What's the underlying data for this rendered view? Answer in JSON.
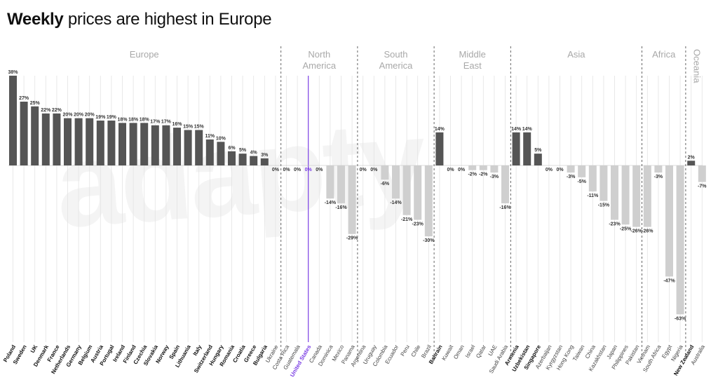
{
  "title": {
    "bold": "Weekly",
    "rest": " prices are highest in Europe"
  },
  "watermark": "adapty",
  "colors": {
    "positive": "#555555",
    "negative": "#cfcfcf",
    "highlight": "#7b3fe4",
    "gridline": "#e3e3e3",
    "divider": "#555555"
  },
  "chart_data": {
    "type": "bar",
    "title": "Weekly prices are highest in Europe",
    "ylabel": "",
    "xlabel": "",
    "ylim": [
      -63,
      38
    ],
    "highlight": "United States",
    "regions": [
      {
        "name": "Europe",
        "lines": [
          "Europe"
        ],
        "start": 0,
        "end": 24
      },
      {
        "name": "North America",
        "lines": [
          "North",
          "America"
        ],
        "start": 25,
        "end": 31
      },
      {
        "name": "South America",
        "lines": [
          "South",
          "America"
        ],
        "start": 32,
        "end": 38
      },
      {
        "name": "Middle East",
        "lines": [
          "Middle",
          "East"
        ],
        "start": 39,
        "end": 45
      },
      {
        "name": "Asia",
        "lines": [
          "Asia"
        ],
        "start": 46,
        "end": 57
      },
      {
        "name": "Africa",
        "lines": [
          "Africa"
        ],
        "start": 58,
        "end": 61
      },
      {
        "name": "Oceania",
        "lines": [
          "Oceania"
        ],
        "start": 62,
        "end": 63
      }
    ],
    "categories": [
      "Poland",
      "Sweden",
      "UK",
      "Denmark",
      "France",
      "Netherlands",
      "Germany",
      "Belgium",
      "Austria",
      "Portugal",
      "Ireland",
      "Finland",
      "Czechia",
      "Slovakia",
      "Norway",
      "Spain",
      "Lithuania",
      "Italy",
      "Switzerland",
      "Hungary",
      "Romania",
      "Croatia",
      "Greece",
      "Bulgaria",
      "Ukraine",
      "Costa Rica",
      "Guatemala",
      "United States",
      "Canada",
      "Dominica",
      "Mexico",
      "Panama",
      "Argentina",
      "Uruguay",
      "Colombia",
      "Ecuador",
      "Peru",
      "Chile",
      "Brazil",
      "Bahrain",
      "Kuwait",
      "Oman",
      "Israel",
      "Qatar",
      "UAE",
      "Saudi Arabia",
      "Armenia",
      "Uzbekistan",
      "Singapore",
      "Azerbaijan",
      "Kyrgyzstan",
      "Hong Kong",
      "Taiwan",
      "China",
      "Kazakhstan",
      "Japan",
      "Philippines",
      "Pakistan",
      "Vietnam",
      "South Africa",
      "Egypt",
      "Nigeria",
      "New Zealand",
      "Australia"
    ],
    "values": [
      38,
      27,
      25,
      22,
      22,
      20,
      20,
      20,
      19,
      19,
      18,
      18,
      18,
      17,
      17,
      16,
      15,
      15,
      11,
      10,
      6,
      5,
      4,
      3,
      0,
      0,
      0,
      0,
      0,
      -14,
      -16,
      -29,
      0,
      0,
      -6,
      -14,
      -21,
      -23,
      -30,
      14,
      0,
      0,
      -2,
      -2,
      -3,
      -16,
      14,
      14,
      5,
      0,
      0,
      -3,
      -5,
      -11,
      -15,
      -23,
      -25,
      -26,
      -26,
      -3,
      -47,
      -63,
      2,
      -7
    ],
    "labels": [
      "38%",
      "27%",
      "25%",
      "22%",
      "22%",
      "20%",
      "20%",
      "20%",
      "19%",
      "19%",
      "18%",
      "18%",
      "18%",
      "17%",
      "17%",
      "16%",
      "15%",
      "15%",
      "11%",
      "10%",
      "6%",
      "5%",
      "4%",
      "3%",
      "0%",
      "0%",
      "0%",
      "0%",
      "0%",
      "-14%",
      "-16%",
      "-29%",
      "0%",
      "0%",
      "-6%",
      "-14%",
      "-21%",
      "-23%",
      "-30%",
      "14%",
      "0%",
      "0%",
      "-2%",
      "-2%",
      "-3%",
      "-16%",
      "14%",
      "14%",
      "5%",
      "0%",
      "0%",
      "-3%",
      "-5%",
      "-11%",
      "-15%",
      "-23%",
      "-25%",
      "-26%",
      "-26%",
      "-3%",
      "-47%",
      "-63%",
      "2%",
      "-7%"
    ],
    "bold_categories": [
      "Poland",
      "Sweden",
      "UK",
      "Denmark",
      "France",
      "Netherlands",
      "Germany",
      "Belgium",
      "Austria",
      "Portugal",
      "Ireland",
      "Finland",
      "Czechia",
      "Slovakia",
      "Norway",
      "Spain",
      "Lithuania",
      "Italy",
      "Switzerland",
      "Hungary",
      "Romania",
      "Croatia",
      "Greece",
      "Bulgaria",
      "Bahrain",
      "Armenia",
      "Uzbekistan",
      "Singapore",
      "New Zealand"
    ]
  }
}
